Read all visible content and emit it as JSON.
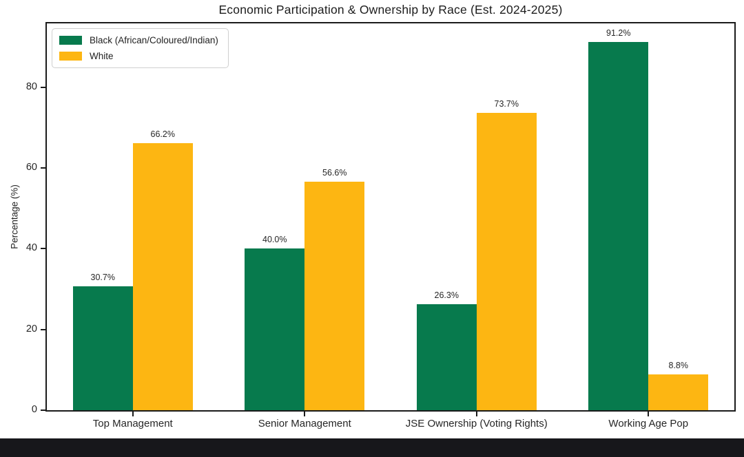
{
  "page": {
    "background": "#ffffff",
    "bottom_bar_color": "#17171b",
    "spine_color": "#1a1a1a",
    "text_color": "#262626"
  },
  "chart_data": {
    "type": "bar",
    "title": "Economic Participation & Ownership by Race (Est. 2024-2025)",
    "xlabel": "",
    "ylabel": "Percentage (%)",
    "categories": [
      "Top Management",
      "Senior Management",
      "JSE Ownership (Voting Rights)",
      "Working Age Pop"
    ],
    "series": [
      {
        "name": "Black (African/Coloured/Indian)",
        "color": "#077a4d",
        "values": [
          30.7,
          40.0,
          26.3,
          91.2
        ]
      },
      {
        "name": "White",
        "color": "#fdb612",
        "values": [
          66.2,
          56.6,
          73.7,
          8.8
        ]
      }
    ],
    "value_labels": [
      [
        "30.7%",
        "40.0%",
        "26.3%",
        "91.2%"
      ],
      [
        "66.2%",
        "56.6%",
        "73.7%",
        "8.8%"
      ]
    ],
    "yticks": [
      0,
      20,
      40,
      60,
      80
    ],
    "ytick_labels": [
      "0",
      "20",
      "40",
      "60",
      "80"
    ],
    "ylim": [
      0,
      95.8
    ],
    "grid": false,
    "legend_position": "upper-left",
    "bar_group_width_fraction": 0.35
  }
}
